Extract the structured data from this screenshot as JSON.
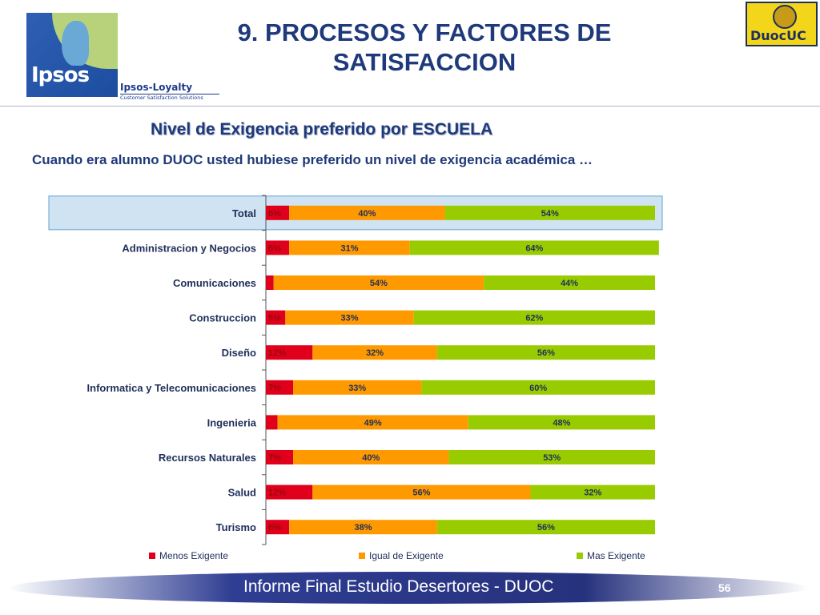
{
  "header": {
    "title": "9. PROCESOS Y FACTORES DE SATISFACCION",
    "title_line1": "9. PROCESOS Y FACTORES DE",
    "title_line2": "SATISFACCION",
    "logo_left_text": "Ipsos",
    "logo_left_sub": "Ipsos-Loyalty",
    "logo_left_tagline": "Customer Satisfaction Solutions",
    "logo_right_text": "DuocUC"
  },
  "subtitle": "Nivel de Exigencia preferido por ESCUELA",
  "question": "Cuando era alumno DUOC usted hubiese preferido un nivel de exigencia académica …",
  "chart_data": {
    "type": "bar",
    "orientation": "horizontal",
    "stacked": true,
    "categories": [
      "Total",
      "Administracion y Negocios",
      "Comunicaciones",
      "Construccion",
      "Diseño",
      "Informatica y Telecomunicaciones",
      "Ingenieria",
      "Recursos Naturales",
      "Salud",
      "Turismo"
    ],
    "series": [
      {
        "name": "Menos Exigente",
        "color": "#e0001b",
        "values": [
          6,
          6,
          2,
          5,
          12,
          7,
          3,
          7,
          12,
          6
        ],
        "labels": [
          "6%",
          "6%",
          "",
          "5%",
          "12%",
          "7%",
          "",
          "7%",
          "12%",
          "6%"
        ]
      },
      {
        "name": "Igual de Exigente",
        "color": "#ff9900",
        "values": [
          40,
          31,
          54,
          33,
          32,
          33,
          49,
          40,
          56,
          38
        ],
        "labels": [
          "40%",
          "31%",
          "54%",
          "33%",
          "32%",
          "33%",
          "49%",
          "40%",
          "56%",
          "38%"
        ]
      },
      {
        "name": "Mas Exigente",
        "color": "#99cc00",
        "values": [
          54,
          64,
          44,
          62,
          56,
          60,
          48,
          53,
          32,
          56
        ],
        "labels": [
          "54%",
          "64%",
          "44%",
          "62%",
          "56%",
          "60%",
          "48%",
          "53%",
          "32%",
          "56%"
        ]
      }
    ],
    "highlighted_category": "Total",
    "xlim": [
      0,
      100
    ],
    "legend_position": "bottom",
    "grid": false
  },
  "footer": {
    "text": "Informe Final Estudio Desertores - DUOC",
    "page_number": "56"
  }
}
